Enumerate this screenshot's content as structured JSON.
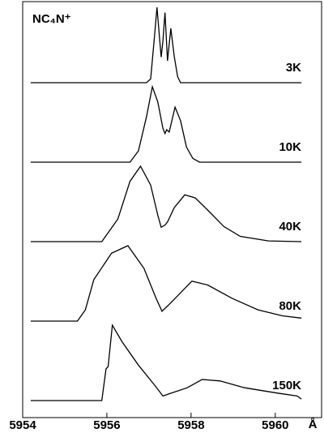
{
  "chart_data": {
    "type": "line",
    "title": "NC₄N⁺",
    "x_label": "Å",
    "xlim": [
      5954,
      5961.1
    ],
    "xticks": [
      5954,
      5956,
      5958,
      5960
    ],
    "color": "#000000",
    "series": [
      {
        "name": "3K",
        "x": [
          5954.19,
          5956.94,
          5957.04,
          5957.12,
          5957.19,
          5957.25,
          5957.29,
          5957.33,
          5957.38,
          5957.44,
          5957.52,
          5957.6,
          5957.68,
          5957.75,
          5960.62
        ],
        "values": [
          0,
          0,
          0.05,
          0.55,
          1.0,
          0.6,
          0.34,
          0.55,
          0.93,
          0.29,
          0.72,
          0.35,
          0.08,
          0,
          0
        ]
      },
      {
        "name": "10K",
        "x": [
          5954.19,
          5956.55,
          5956.75,
          5956.94,
          5957.08,
          5957.21,
          5957.33,
          5957.38,
          5957.42,
          5957.48,
          5957.62,
          5957.75,
          5957.89,
          5958.04,
          5958.2,
          5960.62
        ],
        "values": [
          0,
          0,
          0.15,
          0.6,
          1.0,
          0.8,
          0.45,
          0.38,
          0.43,
          0.4,
          0.73,
          0.55,
          0.2,
          0.05,
          0,
          0
        ]
      },
      {
        "name": "40K",
        "x": [
          5954.19,
          5955.88,
          5956.26,
          5956.55,
          5956.8,
          5957.04,
          5957.21,
          5957.29,
          5957.38,
          5957.44,
          5957.6,
          5957.85,
          5958.1,
          5958.39,
          5958.78,
          5959.17,
          5959.84,
          5960.62
        ],
        "values": [
          0,
          0,
          0.3,
          0.8,
          1.0,
          0.75,
          0.35,
          0.19,
          0.22,
          0.26,
          0.45,
          0.62,
          0.58,
          0.42,
          0.2,
          0.07,
          0.01,
          0
        ]
      },
      {
        "name": "80K",
        "x": [
          5954.19,
          5955.3,
          5955.49,
          5955.69,
          5956.11,
          5956.5,
          5956.88,
          5957.17,
          5957.31,
          5957.44,
          5957.62,
          5958.02,
          5958.39,
          5958.98,
          5959.59,
          5960.17,
          5960.62
        ],
        "values": [
          0,
          0,
          0.15,
          0.55,
          0.9,
          1.0,
          0.7,
          0.3,
          0.13,
          0.2,
          0.3,
          0.53,
          0.48,
          0.3,
          0.15,
          0.07,
          0.04
        ]
      },
      {
        "name": "150K",
        "x": [
          5954.19,
          5955.88,
          5955.98,
          5956.03,
          5956.13,
          5956.36,
          5956.75,
          5957.14,
          5957.33,
          5957.48,
          5957.91,
          5958.26,
          5958.69,
          5959.27,
          5960.04,
          5960.52,
          5960.62
        ],
        "values": [
          0,
          0,
          0.42,
          0.45,
          1.0,
          0.78,
          0.47,
          0.2,
          0.06,
          0.09,
          0.17,
          0.28,
          0.26,
          0.17,
          0.1,
          0.06,
          0.02
        ]
      }
    ]
  }
}
